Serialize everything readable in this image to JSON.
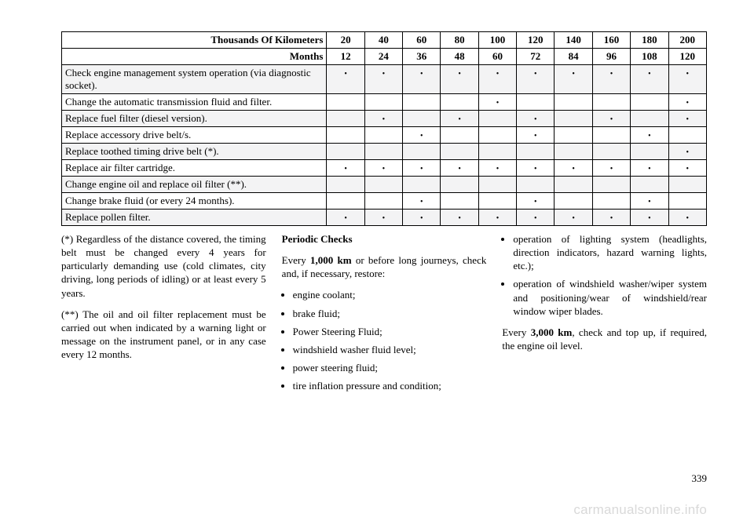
{
  "table": {
    "header1_label": "Thousands Of Kilometers",
    "header1_cols": [
      "20",
      "40",
      "60",
      "80",
      "100",
      "120",
      "140",
      "160",
      "180",
      "200"
    ],
    "header2_label": "Months",
    "header2_cols": [
      "12",
      "24",
      "36",
      "48",
      "60",
      "72",
      "84",
      "96",
      "108",
      "120"
    ],
    "dot": "•",
    "rows": [
      {
        "label": "Check engine management system operation (via diagnostic socket).",
        "shade": true,
        "cells": [
          1,
          1,
          1,
          1,
          1,
          1,
          1,
          1,
          1,
          1
        ]
      },
      {
        "label": "Change the automatic transmission fluid and filter.",
        "shade": false,
        "cells": [
          0,
          0,
          0,
          0,
          1,
          0,
          0,
          0,
          0,
          1
        ]
      },
      {
        "label": "Replace fuel filter (diesel version).",
        "shade": true,
        "cells": [
          0,
          1,
          0,
          1,
          0,
          1,
          0,
          1,
          0,
          1
        ]
      },
      {
        "label": "Replace accessory drive belt/s.",
        "shade": false,
        "cells": [
          0,
          0,
          1,
          0,
          0,
          1,
          0,
          0,
          1,
          0
        ]
      },
      {
        "label": "Replace toothed timing drive belt (*).",
        "shade": true,
        "cells": [
          0,
          0,
          0,
          0,
          0,
          0,
          0,
          0,
          0,
          1
        ]
      },
      {
        "label": "Replace air filter cartridge.",
        "shade": false,
        "cells": [
          1,
          1,
          1,
          1,
          1,
          1,
          1,
          1,
          1,
          1
        ]
      },
      {
        "label": "Change engine oil and replace oil filter (**).",
        "shade": true,
        "cells": [
          0,
          0,
          0,
          0,
          0,
          0,
          0,
          0,
          0,
          0
        ]
      },
      {
        "label": "Change brake fluid (or every 24 months).",
        "shade": false,
        "cells": [
          0,
          0,
          1,
          0,
          0,
          1,
          0,
          0,
          1,
          0
        ]
      },
      {
        "label": "Replace pollen filter.",
        "shade": true,
        "cells": [
          1,
          1,
          1,
          1,
          1,
          1,
          1,
          1,
          1,
          1
        ]
      }
    ]
  },
  "col1": {
    "p1": "(*) Regardless of the distance covered, the timing belt must be changed every 4 years for particularly demanding use (cold climates, city driving, long periods of idling) or at least every 5 years.",
    "p2": "(**) The oil and oil filter replacement must be carried out when indicated by a warning light or message on the instrument panel, or in any case every 12 months."
  },
  "col2": {
    "heading": "Periodic Checks",
    "intro_pre": "Every ",
    "intro_bold": "1,000 km",
    "intro_post": " or before long journeys, check and, if necessary, restore:",
    "items": [
      "engine coolant;",
      "brake fluid;",
      "Power Steering Fluid;",
      "windshield washer fluid level;",
      "power steering fluid;",
      "tire inflation pressure and condition;"
    ]
  },
  "col3": {
    "items": [
      "operation of lighting system (headlights, direction indicators, hazard warning lights, etc.);",
      "operation of windshield washer/wiper system and positioning/wear of windshield/rear window wiper blades."
    ],
    "p_pre": "Every ",
    "p_bold": "3,000 km",
    "p_post": ", check and top up, if required, the engine oil level."
  },
  "pagenum": "339",
  "watermark": "carmanualsonline.info"
}
